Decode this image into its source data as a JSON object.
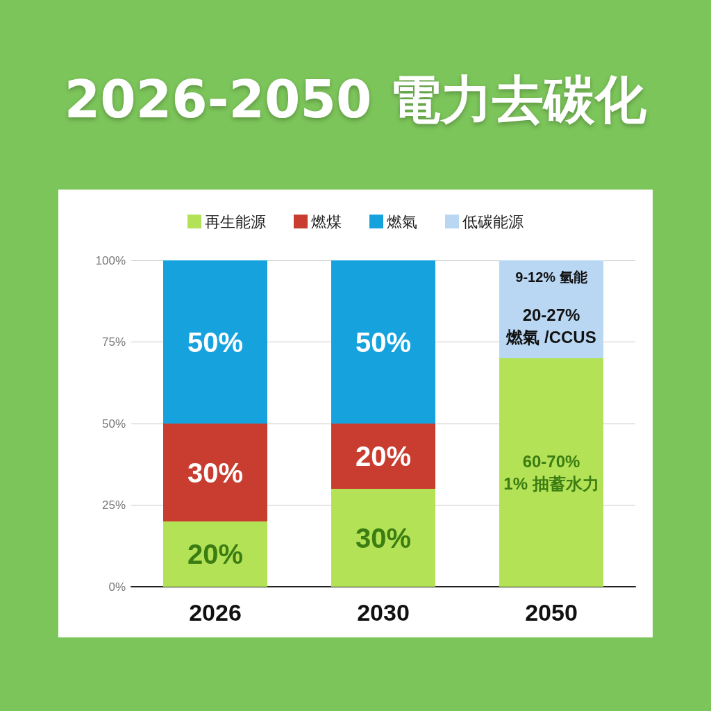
{
  "chart_data": {
    "type": "bar",
    "title": "2026-2050 電力去碳化",
    "stacked": true,
    "categories": [
      "2026",
      "2030",
      "2050"
    ],
    "series": [
      {
        "name": "再生能源",
        "color": "#b3e256",
        "values": [
          20,
          30,
          70
        ],
        "value_labels": [
          "20%",
          "30%",
          null
        ]
      },
      {
        "name": "燃煤",
        "color": "#c83d30",
        "values": [
          30,
          20,
          null
        ],
        "value_labels": [
          "30%",
          "20%",
          null
        ]
      },
      {
        "name": "燃氣",
        "color": "#16a2dd",
        "values": [
          50,
          50,
          null
        ],
        "value_labels": [
          "50%",
          "50%",
          null
        ]
      },
      {
        "name": "低碳能源",
        "color": "#b9d7f3",
        "values": [
          null,
          null,
          20
        ],
        "value_labels": [
          null,
          null,
          null
        ]
      },
      {
        "color": "#b9d7f3",
        "values": [
          null,
          null,
          10
        ]
      }
    ],
    "annotations": [
      "60-70%\n1% 抽蓄水力",
      "20-27%\n燃氣 /CCUS",
      "9-12% 氫能"
    ],
    "ylim": [
      0,
      100
    ],
    "yticks": [
      {
        "value": 0,
        "label": "0%"
      },
      {
        "value": 25,
        "label": "25%"
      },
      {
        "value": 50,
        "label": "50%"
      },
      {
        "value": 75,
        "label": "75%"
      },
      {
        "value": 100,
        "label": "100%"
      }
    ],
    "grid": "y",
    "legend": "top"
  }
}
